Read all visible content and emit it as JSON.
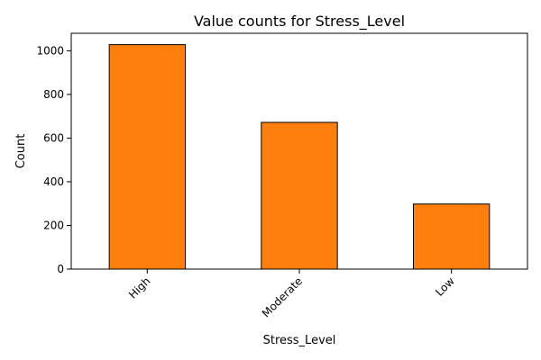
{
  "chart_data": {
    "type": "bar",
    "title": "Value counts for Stress_Level",
    "xlabel": "Stress_Level",
    "ylabel": "Count",
    "categories": [
      "High",
      "Moderate",
      "Low"
    ],
    "values": [
      1028,
      672,
      298
    ],
    "ylim": [
      0,
      1080
    ],
    "yticks": [
      0,
      200,
      400,
      600,
      800,
      1000
    ],
    "grid": false,
    "legend": "none",
    "bar_color": "#ff7f0e",
    "bar_edge_color": "#000000"
  }
}
